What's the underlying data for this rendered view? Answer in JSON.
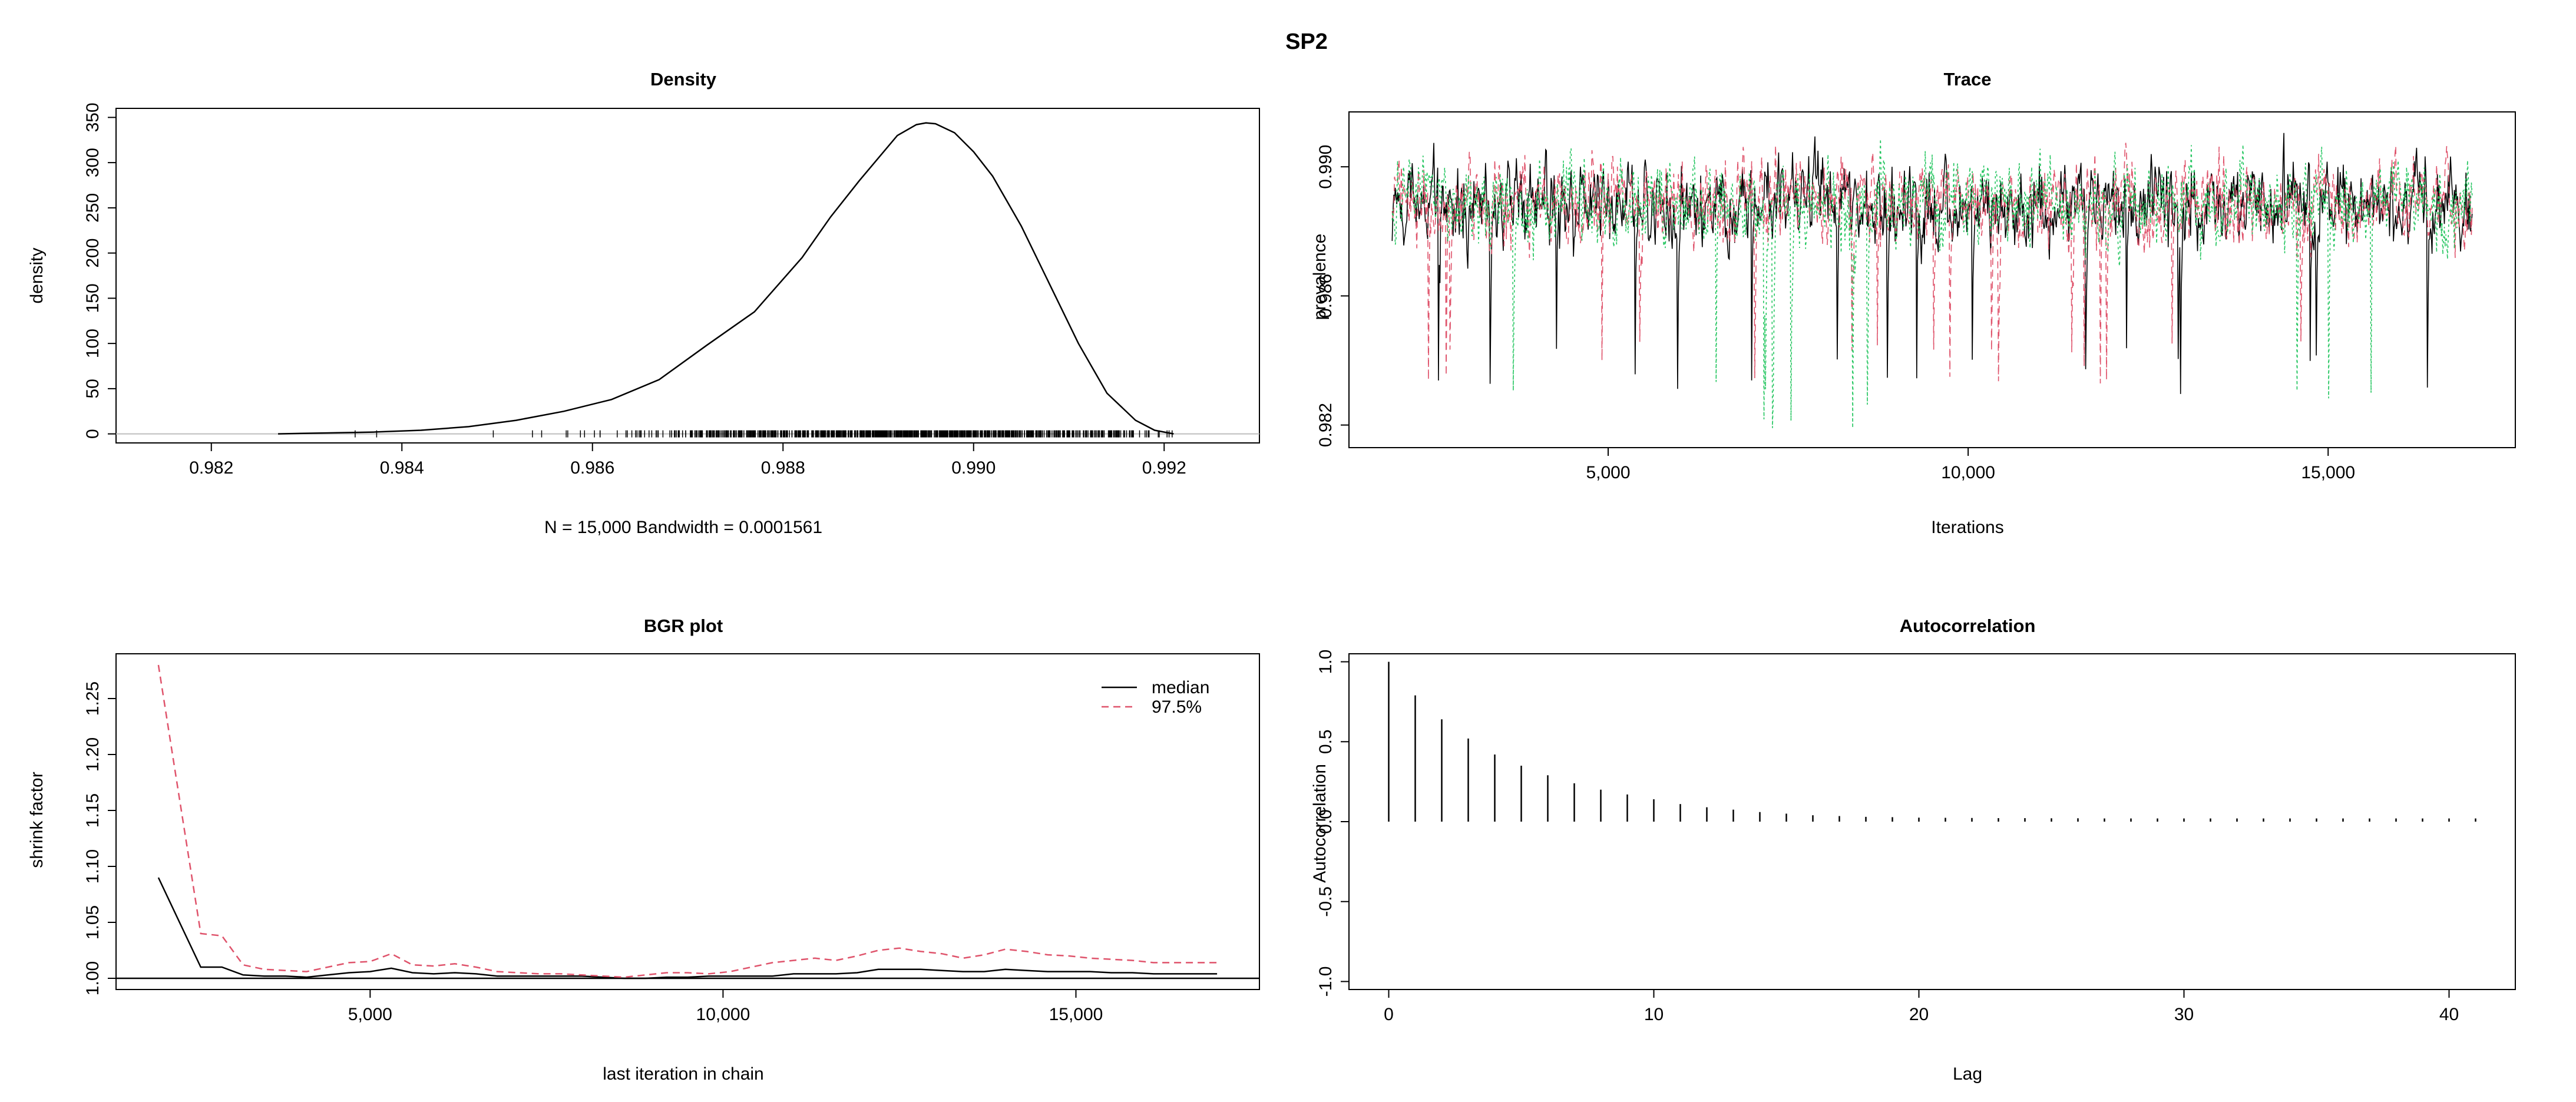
{
  "figure": {
    "title": "SP2"
  },
  "chart_data": [
    {
      "id": "density",
      "type": "line",
      "title": "Density",
      "xlabel": "N = 15,000    Bandwidth = 0.0001561",
      "ylabel": "density",
      "xlim": [
        0.981,
        0.993
      ],
      "ylim": [
        -10,
        360
      ],
      "xticks": [
        0.982,
        0.984,
        0.986,
        0.988,
        0.99,
        0.992
      ],
      "xtick_labels": [
        "0.982",
        "0.984",
        "0.986",
        "0.988",
        "0.990",
        "0.992"
      ],
      "yticks": [
        0,
        50,
        100,
        150,
        200,
        250,
        300,
        350
      ],
      "ytick_labels": [
        "0",
        "50",
        "100",
        "150",
        "200",
        "250",
        "300",
        "350"
      ],
      "zero_line": true,
      "rug_range": [
        0.9827,
        0.9921
      ],
      "x": [
        0.9827,
        0.9832,
        0.9837,
        0.9842,
        0.9847,
        0.9852,
        0.9857,
        0.9862,
        0.9867,
        0.9872,
        0.9877,
        0.9882,
        0.9885,
        0.9888,
        0.989,
        0.9892,
        0.9894,
        0.9895,
        0.9896,
        0.9898,
        0.99,
        0.9902,
        0.9905,
        0.9908,
        0.9911,
        0.9914,
        0.9917,
        0.9919,
        0.9921
      ],
      "y": [
        0,
        1,
        2,
        4,
        8,
        15,
        25,
        38,
        60,
        98,
        135,
        195,
        240,
        280,
        305,
        330,
        342,
        344,
        343,
        333,
        312,
        285,
        230,
        165,
        100,
        45,
        15,
        4,
        0
      ]
    },
    {
      "id": "trace",
      "type": "line",
      "title": "Trace",
      "xlabel": "Iterations",
      "ylabel": "prevalence",
      "xlim": [
        1400,
        17600
      ],
      "ylim": [
        0.9813,
        0.9917
      ],
      "xticks": [
        5000,
        10000,
        15000
      ],
      "xtick_labels": [
        "5,000",
        "10,000",
        "15,000"
      ],
      "yticks": [
        0.982,
        0.986,
        0.99
      ],
      "ytick_labels": [
        "0.982",
        "0.986",
        "0.990"
      ],
      "x_range": [
        2000,
        17000
      ],
      "series": [
        {
          "color": "#000000",
          "dash": "solid",
          "center": 0.9888,
          "spread": 0.0011,
          "low": 0.9829,
          "high": 0.9912
        },
        {
          "color": "#DF536B",
          "dash": "dashed",
          "center": 0.9889,
          "spread": 0.0011,
          "low": 0.9831,
          "high": 0.9912
        },
        {
          "color": "#22C55E",
          "dash": "dotted",
          "center": 0.9889,
          "spread": 0.0011,
          "low": 0.9819,
          "high": 0.9912
        }
      ]
    },
    {
      "id": "bgr",
      "type": "line",
      "title": "BGR plot",
      "xlabel": "last iteration in chain",
      "ylabel": "shrink factor",
      "xlim": [
        1400,
        17600
      ],
      "ylim": [
        0.99,
        1.29
      ],
      "xticks": [
        5000,
        10000,
        15000
      ],
      "xtick_labels": [
        "5,000",
        "10,000",
        "15,000"
      ],
      "yticks": [
        1.0,
        1.05,
        1.1,
        1.15,
        1.2,
        1.25
      ],
      "ytick_labels": [
        "1.00",
        "1.05",
        "1.10",
        "1.15",
        "1.20",
        "1.25"
      ],
      "reference_line": 1.0,
      "legend_position": "top-right",
      "x": [
        2000,
        2300,
        2600,
        2900,
        3200,
        3500,
        3800,
        4100,
        4400,
        4700,
        5000,
        5300,
        5600,
        5900,
        6200,
        6500,
        6800,
        7100,
        7400,
        7700,
        8000,
        8300,
        8600,
        8900,
        9200,
        9500,
        9800,
        10100,
        10400,
        10700,
        11000,
        11300,
        11600,
        11900,
        12200,
        12500,
        12800,
        13100,
        13400,
        13700,
        14000,
        14300,
        14600,
        14900,
        15200,
        15500,
        15800,
        16100,
        16400,
        16700,
        17000
      ],
      "series": [
        {
          "name": "median",
          "color": "#000000",
          "dash": "solid",
          "values": [
            1.09,
            1.05,
            1.01,
            1.01,
            1.003,
            1.002,
            1.002,
            1.001,
            1.003,
            1.005,
            1.006,
            1.009,
            1.005,
            1.004,
            1.005,
            1.004,
            1.002,
            1.002,
            1.002,
            1.002,
            1.002,
            1.001,
            1.0,
            1.0,
            1.001,
            1.001,
            1.002,
            1.002,
            1.002,
            1.002,
            1.004,
            1.004,
            1.004,
            1.005,
            1.008,
            1.008,
            1.008,
            1.007,
            1.006,
            1.006,
            1.008,
            1.007,
            1.006,
            1.006,
            1.006,
            1.005,
            1.005,
            1.004,
            1.004,
            1.004,
            1.004
          ]
        },
        {
          "name": "97.5%",
          "color": "#DF536B",
          "dash": "dashed",
          "values": [
            1.28,
            1.16,
            1.04,
            1.038,
            1.012,
            1.008,
            1.007,
            1.006,
            1.01,
            1.014,
            1.015,
            1.022,
            1.012,
            1.011,
            1.013,
            1.01,
            1.006,
            1.005,
            1.004,
            1.004,
            1.003,
            1.002,
            1.001,
            1.003,
            1.005,
            1.005,
            1.004,
            1.006,
            1.01,
            1.014,
            1.016,
            1.018,
            1.016,
            1.02,
            1.025,
            1.027,
            1.024,
            1.022,
            1.018,
            1.021,
            1.026,
            1.024,
            1.021,
            1.02,
            1.018,
            1.017,
            1.016,
            1.014,
            1.014,
            1.014,
            1.014
          ]
        }
      ]
    },
    {
      "id": "autocorrelation",
      "type": "bar",
      "title": "Autocorrelation",
      "xlabel": "Lag",
      "ylabel": "Autocorrelation",
      "xlim": [
        -1.5,
        42.5
      ],
      "ylim": [
        -1.05,
        1.05
      ],
      "xticks": [
        0,
        10,
        20,
        30,
        40
      ],
      "xtick_labels": [
        "0",
        "10",
        "20",
        "30",
        "40"
      ],
      "yticks": [
        -1.0,
        -0.5,
        0.0,
        0.5,
        1.0
      ],
      "ytick_labels": [
        "-1.0",
        "-0.5",
        "0.0",
        "0.5",
        "1.0"
      ],
      "lags": [
        0,
        1,
        2,
        3,
        4,
        5,
        6,
        7,
        8,
        9,
        10,
        11,
        12,
        13,
        14,
        15,
        16,
        17,
        18,
        19,
        20,
        21,
        22,
        23,
        24,
        25,
        26,
        27,
        28,
        29,
        30,
        31,
        32,
        33,
        34,
        35,
        36,
        37,
        38,
        39,
        40,
        41
      ],
      "values": [
        1.0,
        0.79,
        0.64,
        0.52,
        0.42,
        0.35,
        0.29,
        0.24,
        0.2,
        0.17,
        0.14,
        0.11,
        0.09,
        0.075,
        0.06,
        0.05,
        0.04,
        0.035,
        0.03,
        0.028,
        0.025,
        0.024,
        0.023,
        0.022,
        0.022,
        0.021,
        0.021,
        0.02,
        0.02,
        0.02,
        0.02,
        0.02,
        0.02,
        0.02,
        0.02,
        0.02,
        0.02,
        0.02,
        0.02,
        0.02,
        0.02,
        0.02
      ]
    }
  ]
}
